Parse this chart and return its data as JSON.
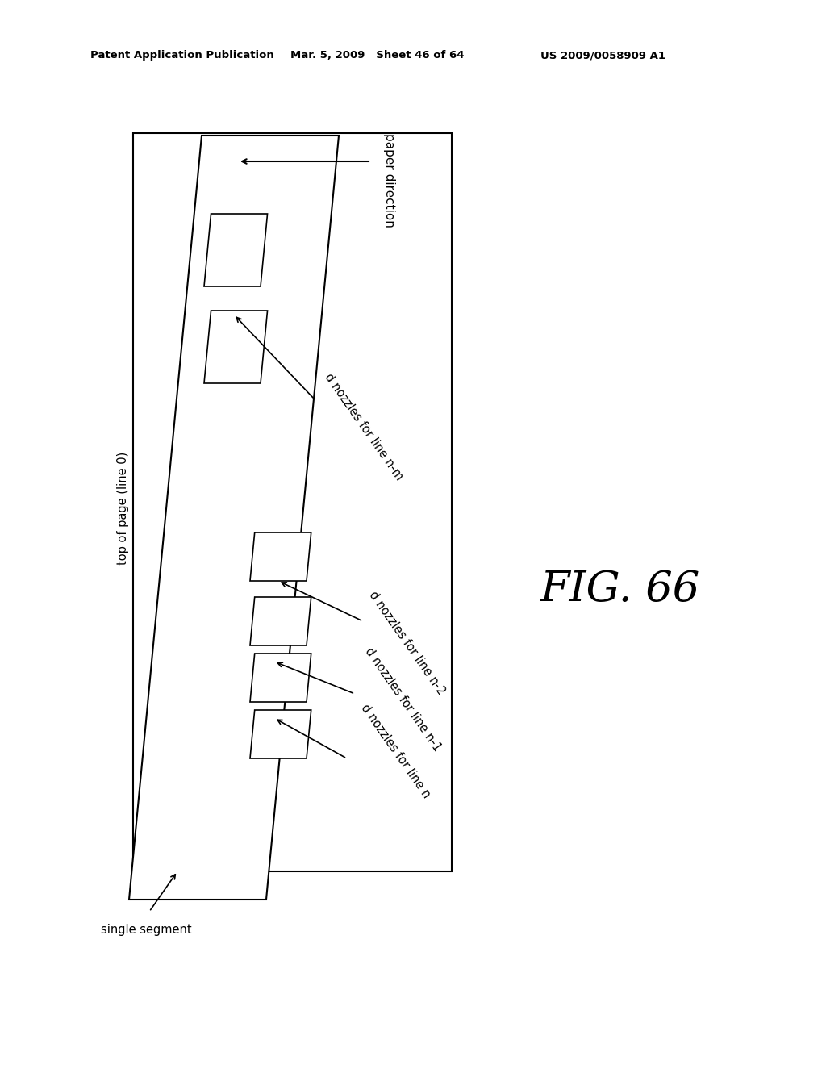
{
  "bg_color": "#ffffff",
  "header_left": "Patent Application Publication",
  "header_mid": "Mar. 5, 2009   Sheet 46 of 64",
  "header_right": "US 2009/0058909 A1",
  "fig_label": "FIG. 66",
  "label_paper_direction": "paper direction",
  "label_top_of_page": "top of page (line 0)",
  "label_single_segment": "single segment",
  "labels_nozzles": [
    "d nozzles for line n-m",
    "d nozzles for line n-2",
    "d nozzles for line n-1",
    "d nozzles for line n"
  ],
  "header_fontsize": 9.5,
  "label_fontsize": 11,
  "nozzle_label_fontsize": 10.5,
  "fig_fontsize": 38
}
